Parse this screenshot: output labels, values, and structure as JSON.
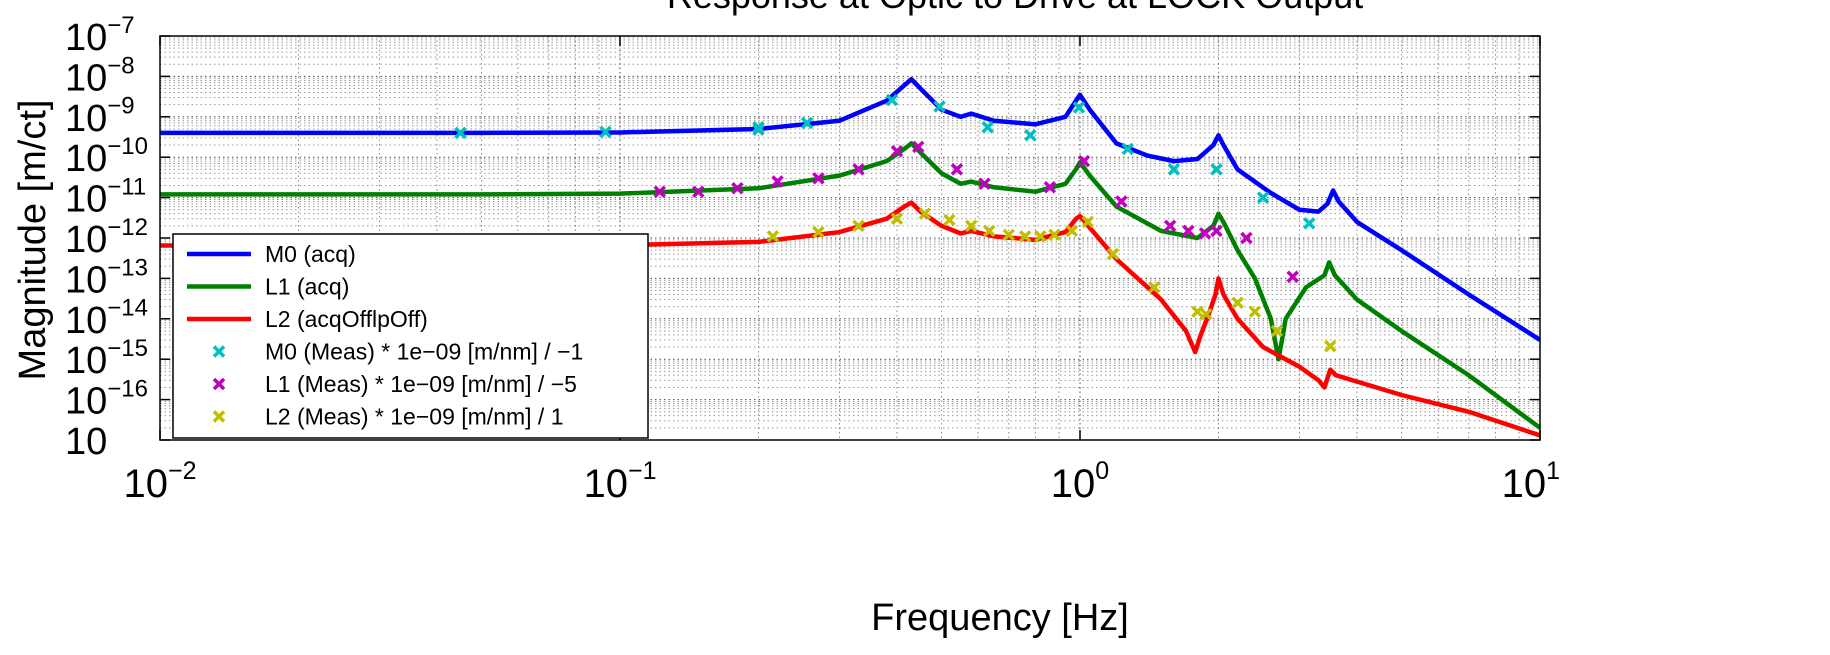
{
  "chart_data": {
    "type": "line",
    "title": "Response at Optic to Drive at LOCK Output",
    "xlabel": "Frequency [Hz]",
    "ylabel": "Magnitude [m/ct]",
    "xscale": "log",
    "yscale": "log",
    "xlim": [
      0.01,
      10
    ],
    "ylim": [
      1e-17,
      1e-07
    ],
    "grid": true,
    "legend_position": "bottom-left",
    "x_ticks": [
      {
        "value": 0.01,
        "base": "10",
        "exp": "−2"
      },
      {
        "value": 0.1,
        "base": "10",
        "exp": "−1"
      },
      {
        "value": 1,
        "base": "10",
        "exp": "0"
      },
      {
        "value": 10,
        "base": "10",
        "exp": "1"
      }
    ],
    "y_ticks": [
      {
        "value": 1e-07,
        "base": "10",
        "exp": "−7"
      },
      {
        "value": 1e-08,
        "base": "10",
        "exp": "−8"
      },
      {
        "value": 1e-09,
        "base": "10",
        "exp": "−9"
      },
      {
        "value": 1e-10,
        "base": "10",
        "exp": "−10"
      },
      {
        "value": 1e-11,
        "base": "10",
        "exp": "−11"
      },
      {
        "value": 1e-12,
        "base": "10",
        "exp": "−12"
      },
      {
        "value": 1e-13,
        "base": "10",
        "exp": "−13"
      },
      {
        "value": 1e-14,
        "base": "10",
        "exp": "−14"
      },
      {
        "value": 1e-15,
        "base": "10",
        "exp": "−15"
      },
      {
        "value": 1e-16,
        "base": "10",
        "exp": "−16"
      },
      {
        "value": 1e-17,
        "base": "10",
        "exp": ""
      }
    ],
    "series": [
      {
        "name": "M0 (acq)",
        "kind": "line",
        "color": "#0000ff",
        "points": [
          [
            0.01,
            4e-10
          ],
          [
            0.05,
            4e-10
          ],
          [
            0.1,
            4.1e-10
          ],
          [
            0.2,
            5e-10
          ],
          [
            0.3,
            8e-10
          ],
          [
            0.38,
            2.5e-09
          ],
          [
            0.415,
            6e-09
          ],
          [
            0.43,
            8.5e-09
          ],
          [
            0.45,
            5e-09
          ],
          [
            0.5,
            1.5e-09
          ],
          [
            0.55,
            1e-09
          ],
          [
            0.58,
            1.2e-09
          ],
          [
            0.65,
            8e-10
          ],
          [
            0.8,
            6.5e-10
          ],
          [
            0.93,
            1e-09
          ],
          [
            0.98,
            2.5e-09
          ],
          [
            1.0,
            3.5e-09
          ],
          [
            1.05,
            1.5e-09
          ],
          [
            1.2,
            2.2e-10
          ],
          [
            1.4,
            1.1e-10
          ],
          [
            1.6,
            8e-11
          ],
          [
            1.8,
            9e-11
          ],
          [
            1.95,
            2e-10
          ],
          [
            2.0,
            3.5e-10
          ],
          [
            2.05,
            2e-10
          ],
          [
            2.2,
            5e-11
          ],
          [
            2.6,
            1.3e-11
          ],
          [
            3.0,
            5e-12
          ],
          [
            3.3,
            4.5e-12
          ],
          [
            3.45,
            7e-12
          ],
          [
            3.55,
            1.5e-11
          ],
          [
            3.65,
            8e-12
          ],
          [
            4.0,
            2.5e-12
          ],
          [
            5.0,
            5e-13
          ],
          [
            7.0,
            4e-14
          ],
          [
            10.0,
            3e-15
          ]
        ]
      },
      {
        "name": "L1 (acq)",
        "kind": "line",
        "color": "#008000",
        "points": [
          [
            0.01,
            1.2e-11
          ],
          [
            0.05,
            1.2e-11
          ],
          [
            0.1,
            1.25e-11
          ],
          [
            0.2,
            1.7e-11
          ],
          [
            0.3,
            3.5e-11
          ],
          [
            0.38,
            8e-11
          ],
          [
            0.415,
            1.6e-10
          ],
          [
            0.43,
            2.2e-10
          ],
          [
            0.45,
            1.3e-10
          ],
          [
            0.5,
            4e-11
          ],
          [
            0.55,
            2.2e-11
          ],
          [
            0.58,
            2.5e-11
          ],
          [
            0.65,
            1.8e-11
          ],
          [
            0.8,
            1.4e-11
          ],
          [
            0.93,
            2.2e-11
          ],
          [
            0.98,
            5e-11
          ],
          [
            1.0,
            7.5e-11
          ],
          [
            1.05,
            3.5e-11
          ],
          [
            1.2,
            6e-12
          ],
          [
            1.5,
            1.5e-12
          ],
          [
            1.8,
            1e-12
          ],
          [
            1.95,
            2e-12
          ],
          [
            2.0,
            4e-12
          ],
          [
            2.05,
            2.5e-12
          ],
          [
            2.2,
            5e-13
          ],
          [
            2.4,
            1e-13
          ],
          [
            2.6,
            1e-14
          ],
          [
            2.66,
            2.5e-15
          ],
          [
            2.7,
            1e-15
          ],
          [
            2.74,
            2.5e-15
          ],
          [
            2.8,
            1e-14
          ],
          [
            3.1,
            6e-14
          ],
          [
            3.4,
            1.2e-13
          ],
          [
            3.48,
            2.5e-13
          ],
          [
            3.58,
            1.2e-13
          ],
          [
            4.0,
            3e-14
          ],
          [
            5.0,
            5e-15
          ],
          [
            7.0,
            4e-16
          ],
          [
            10.0,
            2e-17
          ]
        ]
      },
      {
        "name": "L2 (acqOfflpOff)",
        "kind": "line",
        "color": "#ff0000",
        "points": [
          [
            0.01,
            6.5e-13
          ],
          [
            0.1,
            6.6e-13
          ],
          [
            0.2,
            8e-13
          ],
          [
            0.3,
            1.4e-12
          ],
          [
            0.38,
            3e-12
          ],
          [
            0.415,
            6e-12
          ],
          [
            0.43,
            7.5e-12
          ],
          [
            0.45,
            4.5e-12
          ],
          [
            0.5,
            2e-12
          ],
          [
            0.55,
            1.3e-12
          ],
          [
            0.58,
            1.5e-12
          ],
          [
            0.65,
            1.1e-12
          ],
          [
            0.8,
            9e-13
          ],
          [
            0.93,
            1.4e-12
          ],
          [
            0.98,
            3e-12
          ],
          [
            1.0,
            3.5e-12
          ],
          [
            1.05,
            1.8e-12
          ],
          [
            1.2,
            3e-13
          ],
          [
            1.5,
            3e-14
          ],
          [
            1.7,
            5e-15
          ],
          [
            1.78,
            1.5e-15
          ],
          [
            1.83,
            4e-15
          ],
          [
            1.9,
            1.2e-14
          ],
          [
            1.97,
            4e-14
          ],
          [
            2.0,
            1e-13
          ],
          [
            2.05,
            4e-14
          ],
          [
            2.2,
            1e-14
          ],
          [
            2.5,
            2e-15
          ],
          [
            3.0,
            6.5e-16
          ],
          [
            3.3,
            3e-16
          ],
          [
            3.4,
            2e-16
          ],
          [
            3.5,
            5.5e-16
          ],
          [
            3.6,
            4e-16
          ],
          [
            5.0,
            1.3e-16
          ],
          [
            7.0,
            5e-17
          ],
          [
            10.0,
            1.3e-17
          ]
        ]
      },
      {
        "name": "M0 (Meas) * 1e−09 [m/nm] / −1",
        "kind": "marker",
        "color": "#00bfbf",
        "points": [
          [
            0.045,
            4e-10
          ],
          [
            0.093,
            4.2e-10
          ],
          [
            0.2,
            4.8e-10
          ],
          [
            0.2,
            5.5e-10
          ],
          [
            0.255,
            7e-10
          ],
          [
            0.39,
            2.6e-09
          ],
          [
            0.495,
            1.8e-09
          ],
          [
            0.63,
            5.5e-10
          ],
          [
            0.78,
            3.5e-10
          ],
          [
            0.995,
            1.7e-09
          ],
          [
            1.27,
            1.6e-10
          ],
          [
            1.6,
            5e-11
          ],
          [
            1.98,
            5e-11
          ],
          [
            2.5,
            1e-11
          ],
          [
            3.15,
            2.3e-12
          ]
        ]
      },
      {
        "name": "L1 (Meas) * 1e−09 [m/nm] / −5",
        "kind": "marker",
        "color": "#bf00bf",
        "points": [
          [
            0.122,
            1.4e-11
          ],
          [
            0.148,
            1.4e-11
          ],
          [
            0.18,
            1.7e-11
          ],
          [
            0.22,
            2.5e-11
          ],
          [
            0.27,
            3e-11
          ],
          [
            0.33,
            5e-11
          ],
          [
            0.4,
            1.4e-10
          ],
          [
            0.445,
            1.8e-10
          ],
          [
            0.54,
            5e-11
          ],
          [
            0.62,
            2.2e-11
          ],
          [
            0.86,
            1.8e-11
          ],
          [
            1.02,
            8e-11
          ],
          [
            1.23,
            8e-12
          ],
          [
            1.57,
            2e-12
          ],
          [
            1.72,
            1.5e-12
          ],
          [
            1.87,
            1.3e-12
          ],
          [
            1.98,
            1.5e-12
          ],
          [
            2.3,
            1e-12
          ],
          [
            2.9,
            1.1e-13
          ]
        ]
      },
      {
        "name": "L2 (Meas) * 1e−09 [m/nm] / 1",
        "kind": "marker",
        "color": "#bfbf00",
        "points": [
          [
            0.215,
            1.1e-12
          ],
          [
            0.27,
            1.4e-12
          ],
          [
            0.33,
            2e-12
          ],
          [
            0.4,
            3e-12
          ],
          [
            0.46,
            4e-12
          ],
          [
            0.52,
            2.8e-12
          ],
          [
            0.58,
            2e-12
          ],
          [
            0.635,
            1.5e-12
          ],
          [
            0.7,
            1.2e-12
          ],
          [
            0.76,
            1.1e-12
          ],
          [
            0.82,
            1.1e-12
          ],
          [
            0.88,
            1.2e-12
          ],
          [
            0.96,
            1.5e-12
          ],
          [
            1.04,
            2.5e-12
          ],
          [
            1.18,
            4e-13
          ],
          [
            1.45,
            6e-14
          ],
          [
            1.8,
            1.5e-14
          ],
          [
            1.88,
            1.3e-14
          ],
          [
            2.2,
            2.5e-14
          ],
          [
            2.4,
            1.5e-14
          ],
          [
            2.68,
            5e-15
          ],
          [
            3.5,
            2.1e-15
          ]
        ]
      }
    ]
  }
}
